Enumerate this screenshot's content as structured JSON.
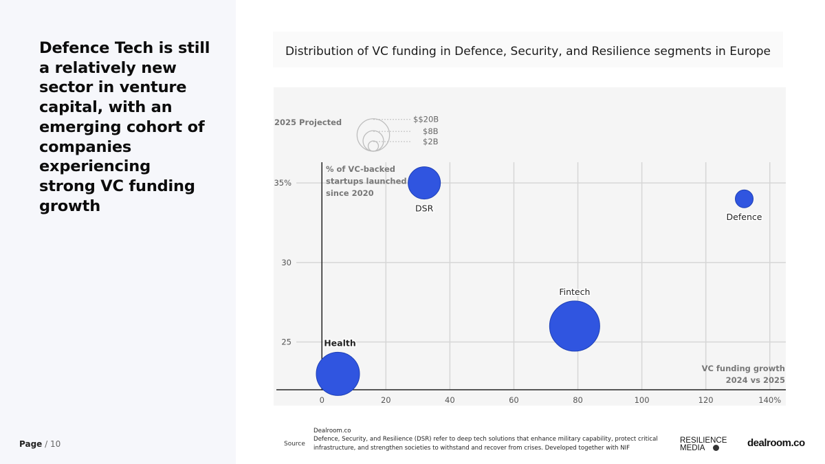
{
  "headline": "Defence Tech is still a relatively new sector in venture capital, with an emerging cohort of companies experiencing strong VC funding growth",
  "page": {
    "label": "Page",
    "separator": "/",
    "number": "10"
  },
  "colors": {
    "bubble": "#3055e0",
    "grid": "#d6d6d6",
    "axis": "#222222",
    "legend_circle": "#bdbdbd"
  },
  "chart_data": {
    "type": "scatter",
    "title": "Distribution of VC funding in Defence, Security, and Resilience segments in Europe",
    "xlabel": "VC funding growth",
    "xlabel_sub": "2024 vs 2025",
    "ylabel": "% of VC-backed startups launched since 2020",
    "ylabel_lines": [
      "% of VC-backed",
      "startups launched",
      "since 2020"
    ],
    "xlim": [
      -8,
      145
    ],
    "ylim": [
      22,
      36.3
    ],
    "x_ticks": [
      0,
      20,
      40,
      60,
      80,
      100,
      120,
      140
    ],
    "x_tick_labels": [
      "0",
      "20",
      "40",
      "60",
      "80",
      "100",
      "120",
      "140%"
    ],
    "y_ticks": [
      25,
      30,
      35
    ],
    "y_tick_labels": [
      "25",
      "30",
      "35%"
    ],
    "size_legend": {
      "title": "2025 Projected",
      "entries": [
        {
          "label": "$$20B",
          "value": 20
        },
        {
          "label": "$8B",
          "value": 8
        },
        {
          "label": "$2B",
          "value": 2
        }
      ]
    },
    "points": [
      {
        "name": "Health",
        "x": 5,
        "y": 23,
        "size": 16,
        "label_bold": true,
        "label_pos": "above"
      },
      {
        "name": "DSR",
        "x": 32,
        "y": 35,
        "size": 9,
        "label_bold": false,
        "label_pos": "below"
      },
      {
        "name": "Fintech",
        "x": 79,
        "y": 26,
        "size": 22,
        "label_bold": false,
        "label_pos": "above"
      },
      {
        "name": "Defence",
        "x": 132,
        "y": 34,
        "size": 2.9,
        "label_bold": false,
        "label_pos": "below"
      }
    ]
  },
  "footer": {
    "source_label": "Source",
    "source_name": "Dealroom.co",
    "source_note": "Defence, Security, and Resilience (DSR) refer to deep tech solutions that enhance military capability, protect critical infrastructure, and strengthen societies to withstand and recover from crises. Developed together with NIF",
    "logo_resilience_line1": "RESILIENCE",
    "logo_resilience_line2": "MEDIA",
    "logo_dealroom": "dealroom.co"
  }
}
